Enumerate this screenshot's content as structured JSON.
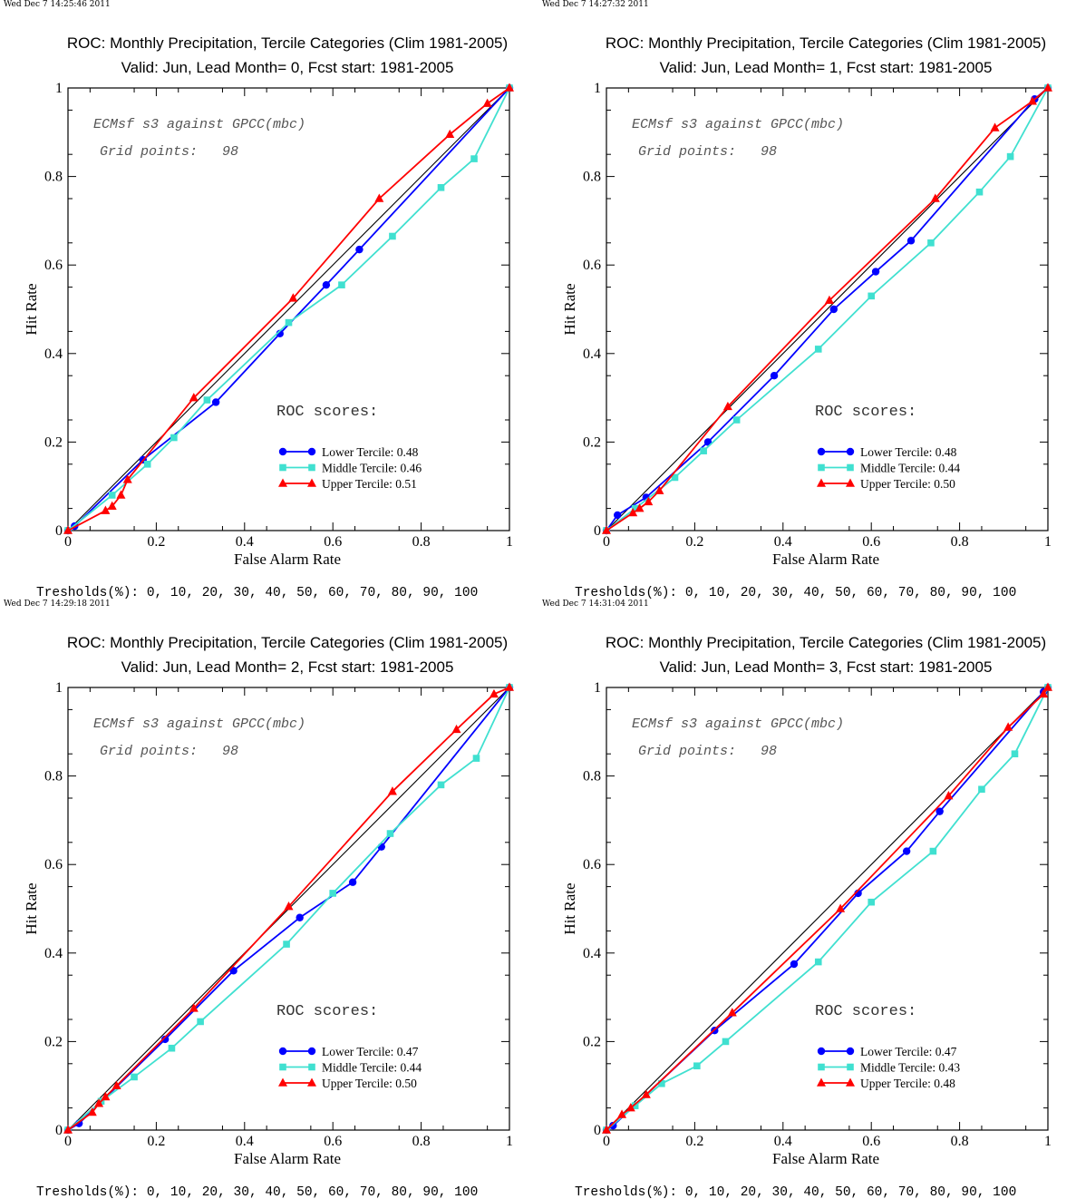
{
  "chart_data": [
    {
      "type": "line",
      "timestamp": "Wed Dec  7 14:25:46 2011",
      "title": "ROC: Monthly Precipitation, Tercile Categories (Clim 1981-2005)",
      "subtitle": "Valid: Jun, Lead Month= 0, Fcst start: 1981-2005",
      "xlabel": "False Alarm Rate",
      "ylabel": "Hit Rate",
      "xlim": [
        0,
        1
      ],
      "ylim": [
        0,
        1
      ],
      "xticks": [
        "0",
        "0.2",
        "0.4",
        "0.6",
        "0.8",
        "1"
      ],
      "yticks": [
        "0",
        "0.2",
        "0.4",
        "0.6",
        "0.8",
        "1"
      ],
      "grid": false,
      "legend_position": "bottom-right",
      "annotation_line1": "ECMsf s3 against GPCC(mbc)",
      "annotation_line2": "Grid points:   98",
      "scores_label": "ROC scores:",
      "thresholds": "Tresholds(%): 0, 10, 20, 30, 40, 50, 60, 70, 80, 90, 100",
      "series": [
        {
          "name": "Lower Tercile: 0.48",
          "color": "#0000ff",
          "marker": "circle",
          "x": [
            0,
            0.015,
            0.17,
            0.335,
            0.48,
            0.585,
            0.66,
            1
          ],
          "y": [
            0,
            0.01,
            0.16,
            0.29,
            0.445,
            0.555,
            0.635,
            1
          ]
        },
        {
          "name": "Middle Tercile: 0.46",
          "color": "#40e0d0",
          "marker": "square",
          "x": [
            0,
            0.1,
            0.18,
            0.24,
            0.315,
            0.5,
            0.62,
            0.735,
            0.845,
            0.92,
            1
          ],
          "y": [
            0,
            0.08,
            0.15,
            0.21,
            0.295,
            0.47,
            0.555,
            0.665,
            0.775,
            0.84,
            1
          ]
        },
        {
          "name": "Upper Tercile: 0.51",
          "color": "#ff0000",
          "marker": "triangle",
          "x": [
            0,
            0.085,
            0.1,
            0.12,
            0.135,
            0.285,
            0.51,
            0.705,
            0.865,
            0.95,
            1
          ],
          "y": [
            0,
            0.045,
            0.055,
            0.08,
            0.115,
            0.3,
            0.525,
            0.75,
            0.895,
            0.965,
            1
          ]
        }
      ]
    },
    {
      "type": "line",
      "timestamp": "Wed Dec  7 14:27:32 2011",
      "title": "ROC: Monthly Precipitation, Tercile Categories (Clim 1981-2005)",
      "subtitle": "Valid: Jun, Lead Month= 1, Fcst start: 1981-2005",
      "xlabel": "False Alarm Rate",
      "ylabel": "Hit Rate",
      "xlim": [
        0,
        1
      ],
      "ylim": [
        0,
        1
      ],
      "xticks": [
        "0",
        "0.2",
        "0.4",
        "0.6",
        "0.8",
        "1"
      ],
      "yticks": [
        "0",
        "0.2",
        "0.4",
        "0.6",
        "0.8",
        "1"
      ],
      "grid": false,
      "legend_position": "bottom-right",
      "annotation_line1": "ECMsf s3 against GPCC(mbc)",
      "annotation_line2": "Grid points:   98",
      "scores_label": "ROC scores:",
      "thresholds": "Tresholds(%): 0, 10, 20, 30, 40, 50, 60, 70, 80, 90, 100",
      "series": [
        {
          "name": "Lower Tercile: 0.48",
          "color": "#0000ff",
          "marker": "circle",
          "x": [
            0,
            0.025,
            0.09,
            0.23,
            0.38,
            0.515,
            0.61,
            0.69,
            0.97,
            1
          ],
          "y": [
            0,
            0.035,
            0.075,
            0.2,
            0.35,
            0.5,
            0.585,
            0.655,
            0.975,
            1
          ]
        },
        {
          "name": "Middle Tercile: 0.44",
          "color": "#40e0d0",
          "marker": "square",
          "x": [
            0,
            0.065,
            0.155,
            0.22,
            0.295,
            0.48,
            0.6,
            0.735,
            0.845,
            0.915,
            1
          ],
          "y": [
            0,
            0.05,
            0.12,
            0.18,
            0.25,
            0.41,
            0.53,
            0.65,
            0.765,
            0.845,
            1
          ]
        },
        {
          "name": "Upper Tercile: 0.50",
          "color": "#ff0000",
          "marker": "triangle",
          "x": [
            0,
            0.06,
            0.075,
            0.095,
            0.12,
            0.275,
            0.505,
            0.745,
            0.88,
            0.965,
            1
          ],
          "y": [
            0,
            0.04,
            0.05,
            0.065,
            0.09,
            0.28,
            0.52,
            0.75,
            0.91,
            0.97,
            1
          ]
        }
      ]
    },
    {
      "type": "line",
      "timestamp": "Wed Dec  7 14:29:18 2011",
      "title": "ROC: Monthly Precipitation, Tercile Categories (Clim 1981-2005)",
      "subtitle": "Valid: Jun, Lead Month= 2, Fcst start: 1981-2005",
      "xlabel": "False Alarm Rate",
      "ylabel": "Hit Rate",
      "xlim": [
        0,
        1
      ],
      "ylim": [
        0,
        1
      ],
      "xticks": [
        "0",
        "0.2",
        "0.4",
        "0.6",
        "0.8",
        "1"
      ],
      "yticks": [
        "0",
        "0.2",
        "0.4",
        "0.6",
        "0.8",
        "1"
      ],
      "grid": false,
      "legend_position": "bottom-right",
      "annotation_line1": "ECMsf s3 against GPCC(mbc)",
      "annotation_line2": "Grid points:   98",
      "scores_label": "ROC scores:",
      "thresholds": "Tresholds(%): 0, 10, 20, 30, 40, 50, 60, 70, 80, 90, 100",
      "series": [
        {
          "name": "Lower Tercile: 0.47",
          "color": "#0000ff",
          "marker": "circle",
          "x": [
            0,
            0.025,
            0.22,
            0.375,
            0.525,
            0.645,
            0.71,
            1
          ],
          "y": [
            0,
            0.015,
            0.205,
            0.36,
            0.48,
            0.56,
            0.64,
            1
          ]
        },
        {
          "name": "Middle Tercile: 0.44",
          "color": "#40e0d0",
          "marker": "square",
          "x": [
            0,
            0.075,
            0.15,
            0.235,
            0.3,
            0.495,
            0.6,
            0.73,
            0.845,
            0.925,
            1
          ],
          "y": [
            0,
            0.065,
            0.12,
            0.185,
            0.245,
            0.42,
            0.535,
            0.67,
            0.78,
            0.84,
            1
          ]
        },
        {
          "name": "Upper Tercile: 0.50",
          "color": "#ff0000",
          "marker": "triangle",
          "x": [
            0,
            0.055,
            0.07,
            0.085,
            0.11,
            0.285,
            0.5,
            0.735,
            0.88,
            0.965,
            1
          ],
          "y": [
            0,
            0.04,
            0.06,
            0.075,
            0.1,
            0.275,
            0.505,
            0.765,
            0.905,
            0.985,
            1
          ]
        }
      ]
    },
    {
      "type": "line",
      "timestamp": "Wed Dec  7 14:31:04 2011",
      "title": "ROC: Monthly Precipitation, Tercile Categories (Clim 1981-2005)",
      "subtitle": "Valid: Jun, Lead Month= 3, Fcst start: 1981-2005",
      "xlabel": "False Alarm Rate",
      "ylabel": "Hit Rate",
      "xlim": [
        0,
        1
      ],
      "ylim": [
        0,
        1
      ],
      "xticks": [
        "0",
        "0.2",
        "0.4",
        "0.6",
        "0.8",
        "1"
      ],
      "yticks": [
        "0",
        "0.2",
        "0.4",
        "0.6",
        "0.8",
        "1"
      ],
      "grid": false,
      "legend_position": "bottom-right",
      "annotation_line1": "ECMsf s3 against GPCC(mbc)",
      "annotation_line2": "Grid points:   98",
      "scores_label": "ROC scores:",
      "thresholds": "Tresholds(%): 0, 10, 20, 30, 40, 50, 60, 70, 80, 90, 100",
      "series": [
        {
          "name": "Lower Tercile: 0.47",
          "color": "#0000ff",
          "marker": "circle",
          "x": [
            0,
            0.015,
            0.245,
            0.425,
            0.57,
            0.68,
            0.755,
            0.99,
            1
          ],
          "y": [
            0,
            0.01,
            0.225,
            0.375,
            0.535,
            0.63,
            0.72,
            0.99,
            1
          ]
        },
        {
          "name": "Middle Tercile: 0.43",
          "color": "#40e0d0",
          "marker": "square",
          "x": [
            0,
            0.065,
            0.125,
            0.205,
            0.27,
            0.48,
            0.6,
            0.74,
            0.85,
            0.925,
            1
          ],
          "y": [
            0,
            0.055,
            0.105,
            0.145,
            0.2,
            0.38,
            0.515,
            0.63,
            0.77,
            0.85,
            1
          ]
        },
        {
          "name": "Upper Tercile: 0.48",
          "color": "#ff0000",
          "marker": "triangle",
          "x": [
            0,
            0.035,
            0.055,
            0.09,
            0.285,
            0.53,
            0.775,
            0.91,
            0.99,
            1
          ],
          "y": [
            0,
            0.035,
            0.05,
            0.08,
            0.265,
            0.5,
            0.755,
            0.91,
            0.985,
            1
          ]
        }
      ]
    }
  ]
}
